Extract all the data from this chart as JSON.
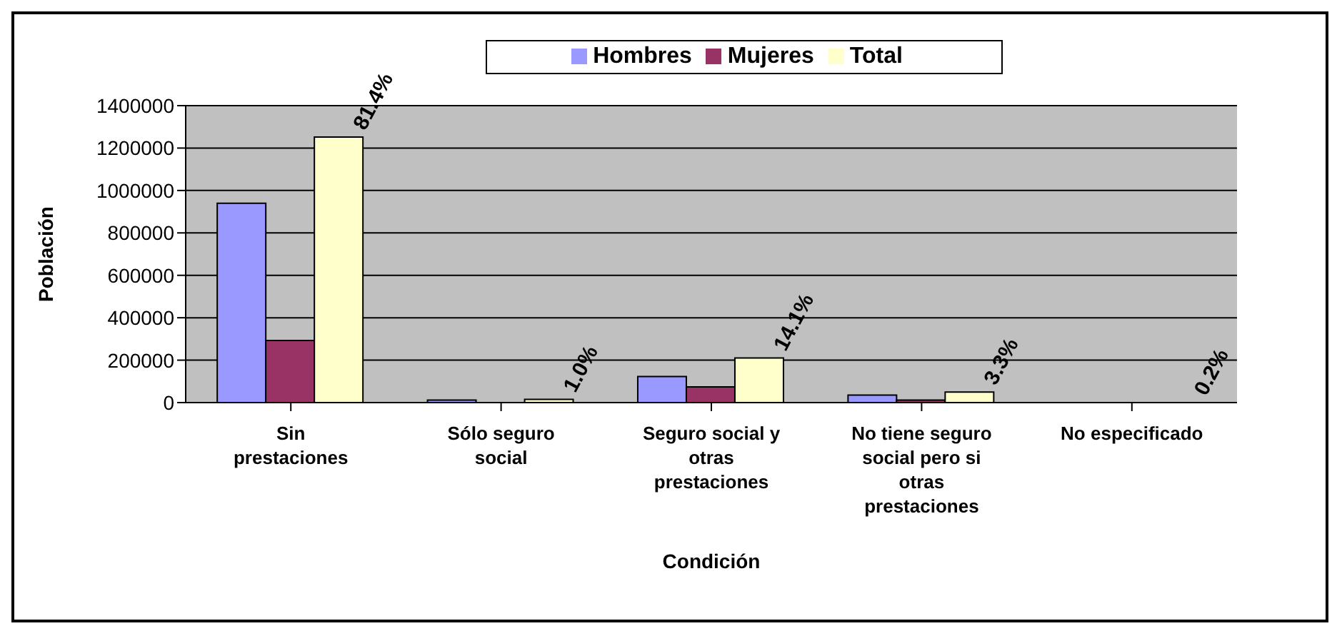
{
  "chart_data": {
    "type": "bar",
    "xlabel": "Condición",
    "ylabel": "Población",
    "categories": [
      "Sin prestaciones",
      "Sólo seguro social",
      "Seguro social y otras prestaciones",
      "No tiene seguro social pero si otras prestaciones",
      "No especificado"
    ],
    "series": [
      {
        "name": "Hombres",
        "color": "#9999ff",
        "values": [
          940000,
          12000,
          123000,
          35000,
          null
        ]
      },
      {
        "name": "Mujeres",
        "color": "#993366",
        "values": [
          293000,
          null,
          74000,
          12000,
          null
        ]
      },
      {
        "name": "Total",
        "color": "#ffffcc",
        "values": [
          1252000,
          15000,
          210000,
          50000,
          null
        ]
      }
    ],
    "annotations": [
      "81.4%",
      "1.0%",
      "14.1%",
      "3.3%",
      "0.2%"
    ],
    "ylim": [
      0,
      1400000
    ],
    "yticks": [
      0,
      200000,
      400000,
      600000,
      800000,
      1000000,
      1200000,
      1400000
    ],
    "grid": "y",
    "legend": "top"
  }
}
